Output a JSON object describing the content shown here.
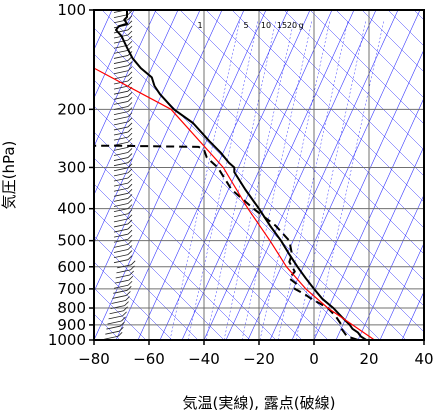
{
  "chart_data": {
    "type": "line",
    "xlabel": "気温(実線), 露点(破線)",
    "ylabel": "気圧(hPa)",
    "xlim": [
      -80,
      40
    ],
    "ylim": [
      1000,
      100
    ],
    "y_scale": "log",
    "x_ticks": [
      -80,
      -60,
      -40,
      -20,
      0,
      20,
      40
    ],
    "x_tick_labels": [
      "−80",
      "−60",
      "−40",
      "−20",
      "0",
      "20",
      "40"
    ],
    "y_ticks": [
      1000,
      900,
      800,
      700,
      600,
      500,
      400,
      300,
      200,
      100
    ],
    "y_tick_labels": [
      "1000",
      "900",
      "800",
      "700",
      "600",
      "500",
      "400",
      "300",
      "200",
      "100"
    ],
    "grid": true,
    "mixing_ratio_labels": [
      "1",
      "5",
      "10",
      "15",
      "20",
      "g"
    ],
    "series": [
      {
        "role": "temperature",
        "color": "#000000",
        "style": "solid",
        "points": [
          [
            1000,
            19
          ],
          [
            975,
            17
          ],
          [
            950,
            16
          ],
          [
            925,
            14
          ],
          [
            900,
            13
          ],
          [
            850,
            10
          ],
          [
            800,
            7
          ],
          [
            750,
            3
          ],
          [
            700,
            0
          ],
          [
            650,
            -3
          ],
          [
            600,
            -6
          ],
          [
            550,
            -9
          ],
          [
            500,
            -12
          ],
          [
            450,
            -16
          ],
          [
            400,
            -20
          ],
          [
            350,
            -25
          ],
          [
            310,
            -29
          ],
          [
            300,
            -29
          ],
          [
            290,
            -31
          ],
          [
            270,
            -34
          ],
          [
            250,
            -38
          ],
          [
            220,
            -44
          ],
          [
            200,
            -51
          ],
          [
            180,
            -56
          ],
          [
            170,
            -58
          ],
          [
            160,
            -59
          ],
          [
            150,
            -63
          ],
          [
            140,
            -66
          ],
          [
            130,
            -68
          ],
          [
            120,
            -70
          ],
          [
            115,
            -72
          ],
          [
            112,
            -71
          ],
          [
            110,
            -68
          ],
          [
            107,
            -69
          ],
          [
            105,
            -68
          ],
          [
            100,
            -68
          ]
        ]
      },
      {
        "role": "dewpoint",
        "color": "#000000",
        "style": "dashed",
        "points": [
          [
            1000,
            16
          ],
          [
            975,
            12
          ],
          [
            950,
            11
          ],
          [
            925,
            10
          ],
          [
            900,
            10
          ],
          [
            850,
            8
          ],
          [
            800,
            5
          ],
          [
            750,
            -1
          ],
          [
            730,
            -3
          ],
          [
            700,
            -7
          ],
          [
            680,
            -6
          ],
          [
            650,
            -9
          ],
          [
            620,
            -7
          ],
          [
            600,
            -8
          ],
          [
            580,
            -9
          ],
          [
            550,
            -8
          ],
          [
            500,
            -9
          ],
          [
            450,
            -14
          ],
          [
            400,
            -22
          ],
          [
            350,
            -30
          ],
          [
            300,
            -35
          ],
          [
            280,
            -39
          ],
          [
            265,
            -40
          ],
          [
            260,
            -42
          ],
          [
            258,
            -70
          ],
          [
            258,
            -80
          ]
        ]
      },
      {
        "role": "reference",
        "color": "#ff0000",
        "style": "solid",
        "points": [
          [
            1000,
            22
          ],
          [
            900,
            14
          ],
          [
            800,
            5
          ],
          [
            700,
            -3
          ],
          [
            600,
            -10
          ],
          [
            500,
            -16
          ],
          [
            400,
            -24
          ],
          [
            300,
            -33
          ],
          [
            200,
            -52
          ],
          [
            150,
            -80
          ]
        ]
      }
    ],
    "wind_barb_column": true
  }
}
